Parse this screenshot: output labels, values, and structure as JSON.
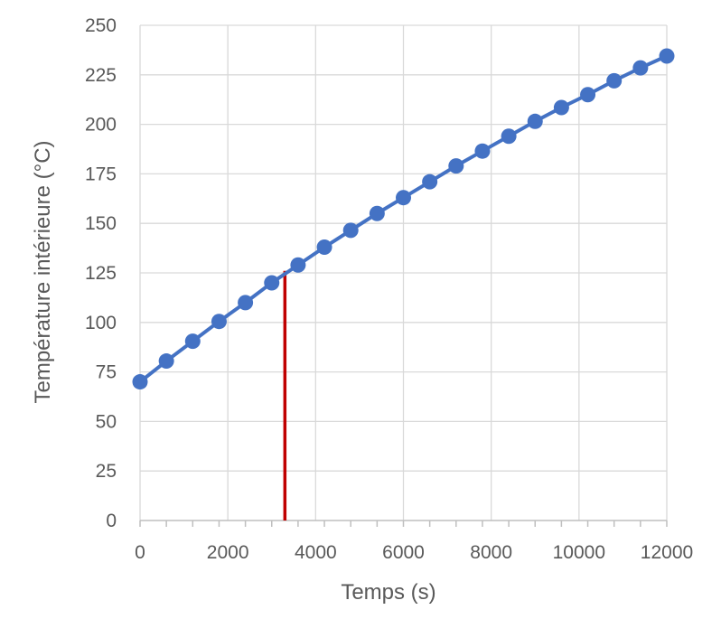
{
  "chart_data": {
    "type": "line",
    "title": "",
    "xlabel": "Temps (s)",
    "ylabel": "Température intérieure (°C)",
    "xlim": [
      0,
      12000
    ],
    "ylim": [
      0,
      250
    ],
    "x_ticks": [
      0,
      2000,
      4000,
      6000,
      8000,
      10000,
      12000
    ],
    "x_tick_labels": [
      "0",
      "2000",
      "4000",
      "6000",
      "8000",
      "10000",
      "12000"
    ],
    "y_ticks": [
      0,
      25,
      50,
      75,
      100,
      125,
      150,
      175,
      200,
      225,
      250
    ],
    "y_tick_labels": [
      "0",
      "25",
      "50",
      "75",
      "100",
      "125",
      "150",
      "175",
      "200",
      "225",
      "250"
    ],
    "x_minor_step": 600,
    "grid": true,
    "legend": "none",
    "series": [
      {
        "color": "#4472C4",
        "marker": "circle",
        "x": [
          0,
          600,
          1200,
          1800,
          2400,
          3000,
          3600,
          4200,
          4800,
          5400,
          6000,
          6600,
          7200,
          7800,
          8400,
          9000,
          9600,
          10200,
          10800,
          11400,
          12000
        ],
        "y": [
          70,
          80.5,
          90.5,
          100.5,
          110,
          120,
          129,
          138,
          146.5,
          155,
          163,
          171,
          179,
          186.5,
          194,
          201.5,
          208.5,
          215,
          222,
          228.5,
          234.5
        ]
      }
    ],
    "annotations": [
      {
        "type": "vertical-line",
        "x": 3300,
        "y_from": 0,
        "y_to": 126,
        "color": "#C00000"
      }
    ]
  }
}
